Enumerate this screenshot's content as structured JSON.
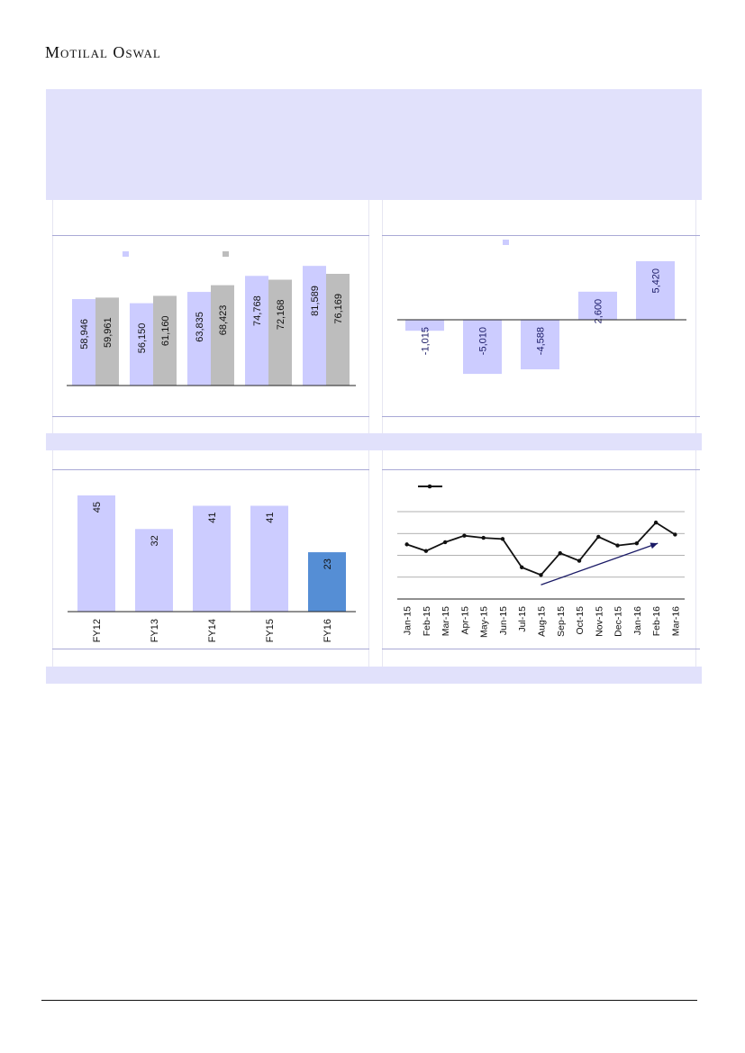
{
  "header": {
    "brand": "Motilal Oswal"
  },
  "colors": {
    "lavender": "#ccccff",
    "grey": "#bdbdbd",
    "highlight": "#558ed5",
    "navy": "#1a1a66",
    "band": "#e1e1fb"
  },
  "chart_data": [
    {
      "type": "bar",
      "categories": [
        "",
        "",
        "",
        "",
        ""
      ],
      "series": [
        {
          "values": [
            58946,
            56150,
            63835,
            74768,
            81589
          ],
          "labels": [
            "58,946",
            "56,150",
            "63,835",
            "74,768",
            "81,589"
          ]
        },
        {
          "values": [
            59961,
            61160,
            68423,
            72168,
            76169
          ],
          "labels": [
            "59,961",
            "61,160",
            "68,423",
            "72,168",
            "76,169"
          ]
        }
      ],
      "ylim": [
        0,
        86000
      ],
      "legend": "top"
    },
    {
      "type": "bar",
      "categories": [
        "",
        "",
        "",
        "",
        ""
      ],
      "values": [
        -1015,
        -5010,
        -4588,
        2600,
        5420
      ],
      "labels": [
        "-1,015",
        "-5,010",
        "-4,588",
        "2,600",
        "5,420"
      ],
      "ylim": [
        -5200,
        5600
      ],
      "legend": "top"
    },
    {
      "type": "bar",
      "categories": [
        "FY12",
        "FY13",
        "FY14",
        "FY15",
        "FY16"
      ],
      "values": [
        45,
        32,
        41,
        41,
        23
      ],
      "labels": [
        "45",
        "32",
        "41",
        "41",
        "23"
      ],
      "highlight_index": 4,
      "ylim": [
        0,
        47
      ]
    },
    {
      "type": "line",
      "x": [
        "Jan-15",
        "Feb-15",
        "Mar-15",
        "Apr-15",
        "May-15",
        "Jun-15",
        "Jul-15",
        "Aug-15",
        "Sep-15",
        "Oct-15",
        "Nov-15",
        "Dec-15",
        "Jan-16",
        "Feb-16",
        "Mar-16"
      ],
      "series": [
        {
          "values": [
            2.5,
            2.2,
            2.6,
            2.9,
            2.8,
            2.75,
            1.45,
            1.1,
            2.1,
            1.75,
            2.85,
            2.45,
            2.55,
            3.5,
            2.95
          ]
        }
      ],
      "ylim": [
        0,
        4
      ],
      "grid": true,
      "legend": "top-left",
      "trend_arrow": {
        "from_index": 7.5,
        "from_value": 0.65,
        "to_index": 13.6,
        "to_value": 2.55
      }
    }
  ]
}
